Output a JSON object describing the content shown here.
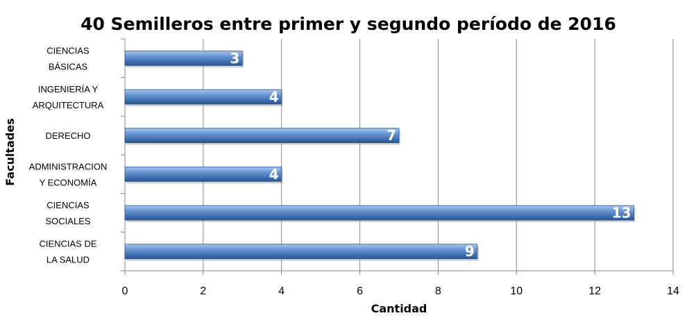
{
  "chart_data": {
    "type": "bar",
    "orientation": "horizontal",
    "title": "40 Semilleros entre primer y segundo período de 2016",
    "xlabel": "Cantidad",
    "ylabel": "Facultades",
    "categories": [
      [
        "CIENCIAS",
        "BÁSICAS"
      ],
      [
        "INGENIERÍA Y",
        "ARQUITECTURA"
      ],
      [
        "DERECHO"
      ],
      [
        "ADMINISTRACION",
        "Y ECONOMÍA"
      ],
      [
        "CIENCIAS",
        "SOCIALES"
      ],
      [
        "CIENCIAS DE",
        "LA SALUD"
      ]
    ],
    "values": [
      3,
      4,
      7,
      4,
      13,
      9
    ],
    "xlim": [
      0,
      14
    ],
    "xticks": [
      "0",
      "2",
      "4",
      "6",
      "8",
      "10",
      "12",
      "14"
    ],
    "grid": "vertical",
    "legend": "none",
    "bar_color": "#4a7ec0"
  }
}
